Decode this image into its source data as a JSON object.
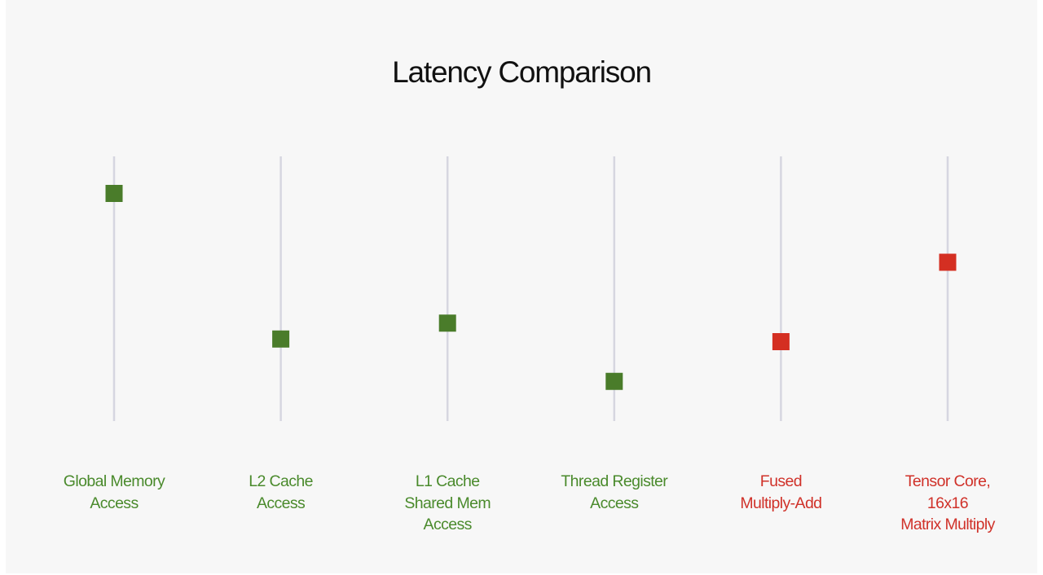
{
  "chart_data": {
    "type": "scatter",
    "title": "Latency Comparison",
    "xlabel": "",
    "ylabel": "",
    "marker": "square",
    "grid": false,
    "categories": [
      "Global Memory\nAccess",
      "L2 Cache\nAccess",
      "L1 Cache\nShared Mem\nAccess",
      "Thread Register\nAccess",
      "Fused\nMultiply-Add",
      "Tensor Core,\n16x16\nMatrix Multiply"
    ],
    "values": [
      0.86,
      0.31,
      0.37,
      0.15,
      0.3,
      0.6
    ],
    "value_note": "relative vertical position on each track (0 = bottom, 1 = top); no numeric scale is printed",
    "ylim": [
      0,
      1
    ],
    "colors": [
      "#4a7c2a",
      "#4a7c2a",
      "#4a7c2a",
      "#4a7c2a",
      "#d42f22",
      "#d42f22"
    ],
    "label_colors": [
      "#4a8a2c",
      "#4a8a2c",
      "#4a8a2c",
      "#4a8a2c",
      "#d0322a",
      "#d0322a"
    ],
    "track_color": "#d6d6e0"
  }
}
